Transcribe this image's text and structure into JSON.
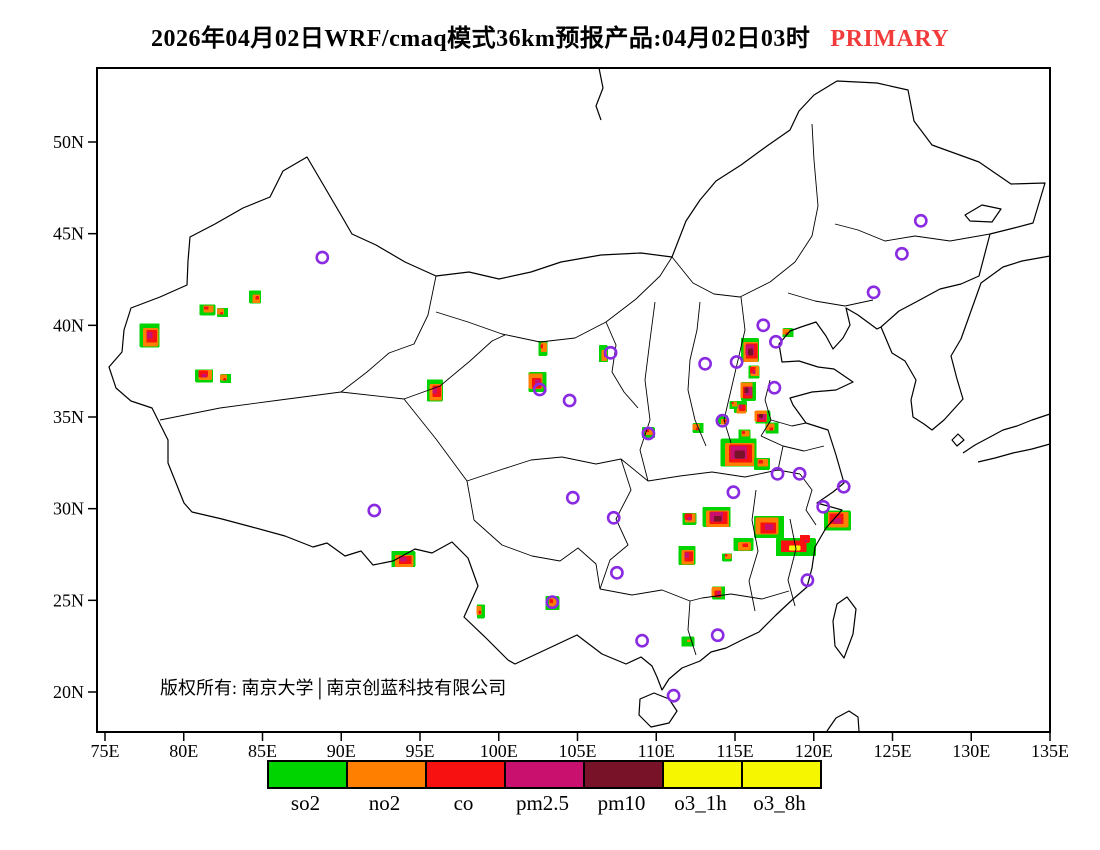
{
  "title": {
    "text": "2026年04月02日WRF/cmaq模式36km预报产品:04月02日03时",
    "tag": "PRIMARY",
    "tag_color": "#f23c3c"
  },
  "map": {
    "copyright": "版权所有: 南京大学│南京创蓝科技有限公司",
    "x_ticks": [
      "75E",
      "80E",
      "85E",
      "90E",
      "95E",
      "100E",
      "105E",
      "110E",
      "115E",
      "120E",
      "125E",
      "130E",
      "135E"
    ],
    "y_ticks": [
      "50N",
      "45N",
      "40N",
      "35N",
      "30N",
      "25N",
      "20N"
    ],
    "lon_range": [
      74.5,
      135
    ],
    "lat_range": [
      17.9,
      54.1
    ]
  },
  "legend": {
    "items": [
      {
        "label": "so2",
        "color": "#00d400"
      },
      {
        "label": "no2",
        "color": "#ff8000"
      },
      {
        "label": "co",
        "color": "#f71111"
      },
      {
        "label": "pm2.5",
        "color": "#c9106f"
      },
      {
        "label": "pm10",
        "color": "#771228"
      },
      {
        "label": "o3_1h",
        "color": "#f6f600"
      },
      {
        "label": "o3_8h",
        "color": "#f6f600"
      }
    ]
  },
  "chart_data": {
    "type": "map-grid",
    "description": "WRF/CMAQ 36km air-quality forecast over China; colored grid patches mark dominant pollutant exceedance areas, purple rings mark provincial capital stations",
    "palette": {
      "so2": "#00d400",
      "no2": "#ff8000",
      "co": "#f71111",
      "pm25": "#c9106f",
      "pm10": "#771228",
      "o3": "#f6f600"
    },
    "station_ring_color": "#8a2be2",
    "patches": [
      {
        "lon": 77.9,
        "lat": 39.4,
        "w": 20,
        "h": 24,
        "layers": [
          "so2",
          "no2",
          "co",
          "pm25"
        ]
      },
      {
        "lon": 81.5,
        "lat": 40.9,
        "w": 16,
        "h": 11,
        "layers": [
          "so2",
          "no2",
          "co"
        ]
      },
      {
        "lon": 82.4,
        "lat": 40.7,
        "w": 11,
        "h": 9,
        "layers": [
          "so2",
          "no2",
          "co"
        ]
      },
      {
        "lon": 84.6,
        "lat": 41.5,
        "w": 12,
        "h": 13,
        "layers": [
          "so2",
          "no2",
          "co"
        ]
      },
      {
        "lon": 81.3,
        "lat": 37.3,
        "w": 18,
        "h": 13,
        "layers": [
          "so2",
          "no2",
          "co",
          "pm25"
        ]
      },
      {
        "lon": 82.6,
        "lat": 37.1,
        "w": 11,
        "h": 9,
        "layers": [
          "so2",
          "no2",
          "co"
        ]
      },
      {
        "lon": 96.0,
        "lat": 36.4,
        "w": 16,
        "h": 22,
        "layers": [
          "so2",
          "no2",
          "co",
          "pm25"
        ]
      },
      {
        "lon": 102.8,
        "lat": 38.8,
        "w": 9,
        "h": 15,
        "layers": [
          "so2",
          "no2",
          "co"
        ]
      },
      {
        "lon": 102.4,
        "lat": 36.9,
        "w": 18,
        "h": 20,
        "layers": [
          "so2",
          "no2",
          "co",
          "pm25"
        ]
      },
      {
        "lon": 106.7,
        "lat": 38.4,
        "w": 9,
        "h": 17,
        "layers": [
          "so2",
          "no2",
          "co"
        ]
      },
      {
        "lon": 109.5,
        "lat": 34.2,
        "w": 13,
        "h": 11,
        "layers": [
          "so2",
          "no2",
          "co"
        ]
      },
      {
        "lon": 112.6,
        "lat": 34.4,
        "w": 11,
        "h": 10,
        "layers": [
          "so2",
          "no2",
          "co"
        ]
      },
      {
        "lon": 116.0,
        "lat": 38.6,
        "w": 18,
        "h": 24,
        "layers": [
          "so2",
          "no2",
          "co",
          "pm25",
          "pm10"
        ]
      },
      {
        "lon": 116.2,
        "lat": 37.5,
        "w": 11,
        "h": 13,
        "layers": [
          "so2",
          "no2",
          "co",
          "pm25"
        ]
      },
      {
        "lon": 115.8,
        "lat": 36.4,
        "w": 15,
        "h": 19,
        "layers": [
          "so2",
          "no2",
          "co",
          "pm25",
          "pm10"
        ]
      },
      {
        "lon": 115.4,
        "lat": 35.5,
        "w": 13,
        "h": 12,
        "layers": [
          "so2",
          "no2",
          "co",
          "pm25"
        ]
      },
      {
        "lon": 114.9,
        "lat": 35.7,
        "w": 8,
        "h": 8,
        "layers": [
          "so2",
          "no2",
          "co"
        ]
      },
      {
        "lon": 116.7,
        "lat": 35.0,
        "w": 15,
        "h": 13,
        "layers": [
          "so2",
          "no2",
          "co",
          "pm25",
          "pm10"
        ]
      },
      {
        "lon": 114.3,
        "lat": 34.8,
        "w": 10,
        "h": 9,
        "layers": [
          "so2",
          "no2",
          "co"
        ]
      },
      {
        "lon": 115.6,
        "lat": 34.1,
        "w": 12,
        "h": 10,
        "layers": [
          "so2",
          "no2",
          "co"
        ]
      },
      {
        "lon": 118.3,
        "lat": 39.6,
        "w": 11,
        "h": 9,
        "layers": [
          "so2",
          "no2",
          "co"
        ]
      },
      {
        "lon": 115.3,
        "lat": 33.0,
        "w": 36,
        "h": 28,
        "layers": [
          "so2",
          "no2",
          "co",
          "pm25",
          "pm10"
        ]
      },
      {
        "lon": 116.7,
        "lat": 32.5,
        "w": 16,
        "h": 12,
        "layers": [
          "so2",
          "no2",
          "co"
        ]
      },
      {
        "lon": 117.3,
        "lat": 34.4,
        "w": 13,
        "h": 11,
        "layers": [
          "so2",
          "no2",
          "co"
        ]
      },
      {
        "lon": 113.9,
        "lat": 29.5,
        "w": 28,
        "h": 20,
        "layers": [
          "so2",
          "no2",
          "co",
          "pm25",
          "pm10"
        ]
      },
      {
        "lon": 112.1,
        "lat": 29.5,
        "w": 14,
        "h": 12,
        "layers": [
          "so2",
          "no2",
          "co",
          "pm25"
        ]
      },
      {
        "lon": 117.1,
        "lat": 29.0,
        "w": 30,
        "h": 22,
        "layers": [
          "so2",
          "no2",
          "co",
          "pm25"
        ]
      },
      {
        "lon": 115.6,
        "lat": 28.0,
        "w": 20,
        "h": 13,
        "layers": [
          "so2",
          "no2",
          "co"
        ]
      },
      {
        "lon": 114.5,
        "lat": 27.4,
        "w": 10,
        "h": 8,
        "layers": [
          "so2",
          "no2",
          "co"
        ]
      },
      {
        "lon": 118.8,
        "lat": 27.9,
        "w": 40,
        "h": 18,
        "layers": [
          "so2",
          "co",
          "o3"
        ]
      },
      {
        "lon": 119.5,
        "lat": 28.3,
        "w": 10,
        "h": 8,
        "layers": [
          "co",
          "pm25"
        ]
      },
      {
        "lon": 121.5,
        "lat": 29.4,
        "w": 27,
        "h": 20,
        "layers": [
          "so2",
          "no2",
          "co",
          "pm25"
        ]
      },
      {
        "lon": 113.9,
        "lat": 25.4,
        "w": 13,
        "h": 13,
        "layers": [
          "so2",
          "no2",
          "co",
          "pm25"
        ]
      },
      {
        "lon": 112.0,
        "lat": 27.4,
        "w": 17,
        "h": 19,
        "layers": [
          "so2",
          "no2",
          "co",
          "pm25"
        ]
      },
      {
        "lon": 103.4,
        "lat": 24.9,
        "w": 14,
        "h": 14,
        "layers": [
          "so2",
          "no2",
          "co"
        ]
      },
      {
        "lon": 98.8,
        "lat": 24.4,
        "w": 8,
        "h": 14,
        "layers": [
          "so2",
          "no2",
          "co"
        ]
      },
      {
        "lon": 94.0,
        "lat": 27.2,
        "w": 24,
        "h": 16,
        "layers": [
          "so2",
          "no2",
          "co",
          "pm25"
        ]
      },
      {
        "lon": 112.0,
        "lat": 22.8,
        "w": 13,
        "h": 10,
        "layers": [
          "so2",
          "no2"
        ]
      }
    ],
    "stations": [
      [
        88.8,
        43.7
      ],
      [
        126.8,
        45.7
      ],
      [
        125.6,
        43.9
      ],
      [
        123.8,
        41.8
      ],
      [
        116.8,
        40.0
      ],
      [
        117.6,
        39.1
      ],
      [
        113.1,
        37.9
      ],
      [
        115.1,
        38.0
      ],
      [
        117.5,
        36.6
      ],
      [
        114.2,
        34.8
      ],
      [
        109.5,
        34.1
      ],
      [
        107.1,
        38.5
      ],
      [
        104.5,
        35.9
      ],
      [
        102.6,
        36.5
      ],
      [
        92.1,
        29.9
      ],
      [
        104.7,
        30.6
      ],
      [
        107.3,
        29.5
      ],
      [
        107.5,
        26.5
      ],
      [
        103.4,
        24.9
      ],
      [
        109.1,
        22.8
      ],
      [
        113.9,
        23.1
      ],
      [
        111.1,
        19.8
      ],
      [
        117.7,
        31.9
      ],
      [
        119.1,
        31.9
      ],
      [
        121.9,
        31.2
      ],
      [
        114.9,
        30.9
      ],
      [
        120.6,
        30.1
      ],
      [
        119.6,
        26.1
      ]
    ]
  }
}
